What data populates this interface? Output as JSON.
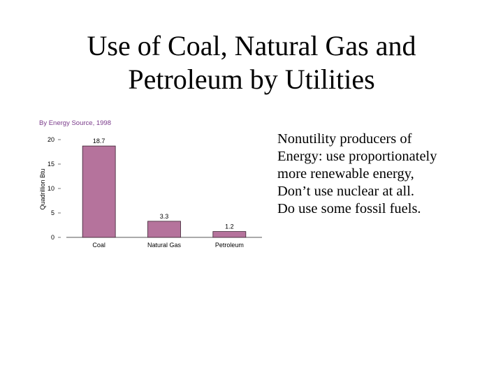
{
  "title": {
    "line1": "Use of Coal, Natural Gas and",
    "line2": "Petroleum by Utilities"
  },
  "body_lines": [
    "Nonutility producers of",
    "Energy: use proportionately",
    "more renewable energy,",
    "Don’t use nuclear at all.",
    "Do use some fossil fuels."
  ],
  "colors": {
    "bar_fill": "#b5739c",
    "bar_stroke": "#3a2030",
    "subtitle": "#7a3a8a",
    "axis": "#555555"
  },
  "chart_data": {
    "type": "bar",
    "title": "By Energy Source, 1998",
    "ylabel": "Quadrillion Btu",
    "xlabel": "",
    "categories": [
      "Coal",
      "Natural Gas",
      "Petroleum"
    ],
    "values": [
      18.7,
      3.3,
      1.2
    ],
    "value_labels": [
      "18.7",
      "3.3",
      "1.2"
    ],
    "ylim": [
      0,
      20
    ],
    "yticks": [
      0,
      5,
      10,
      15,
      20
    ],
    "grid": false
  }
}
